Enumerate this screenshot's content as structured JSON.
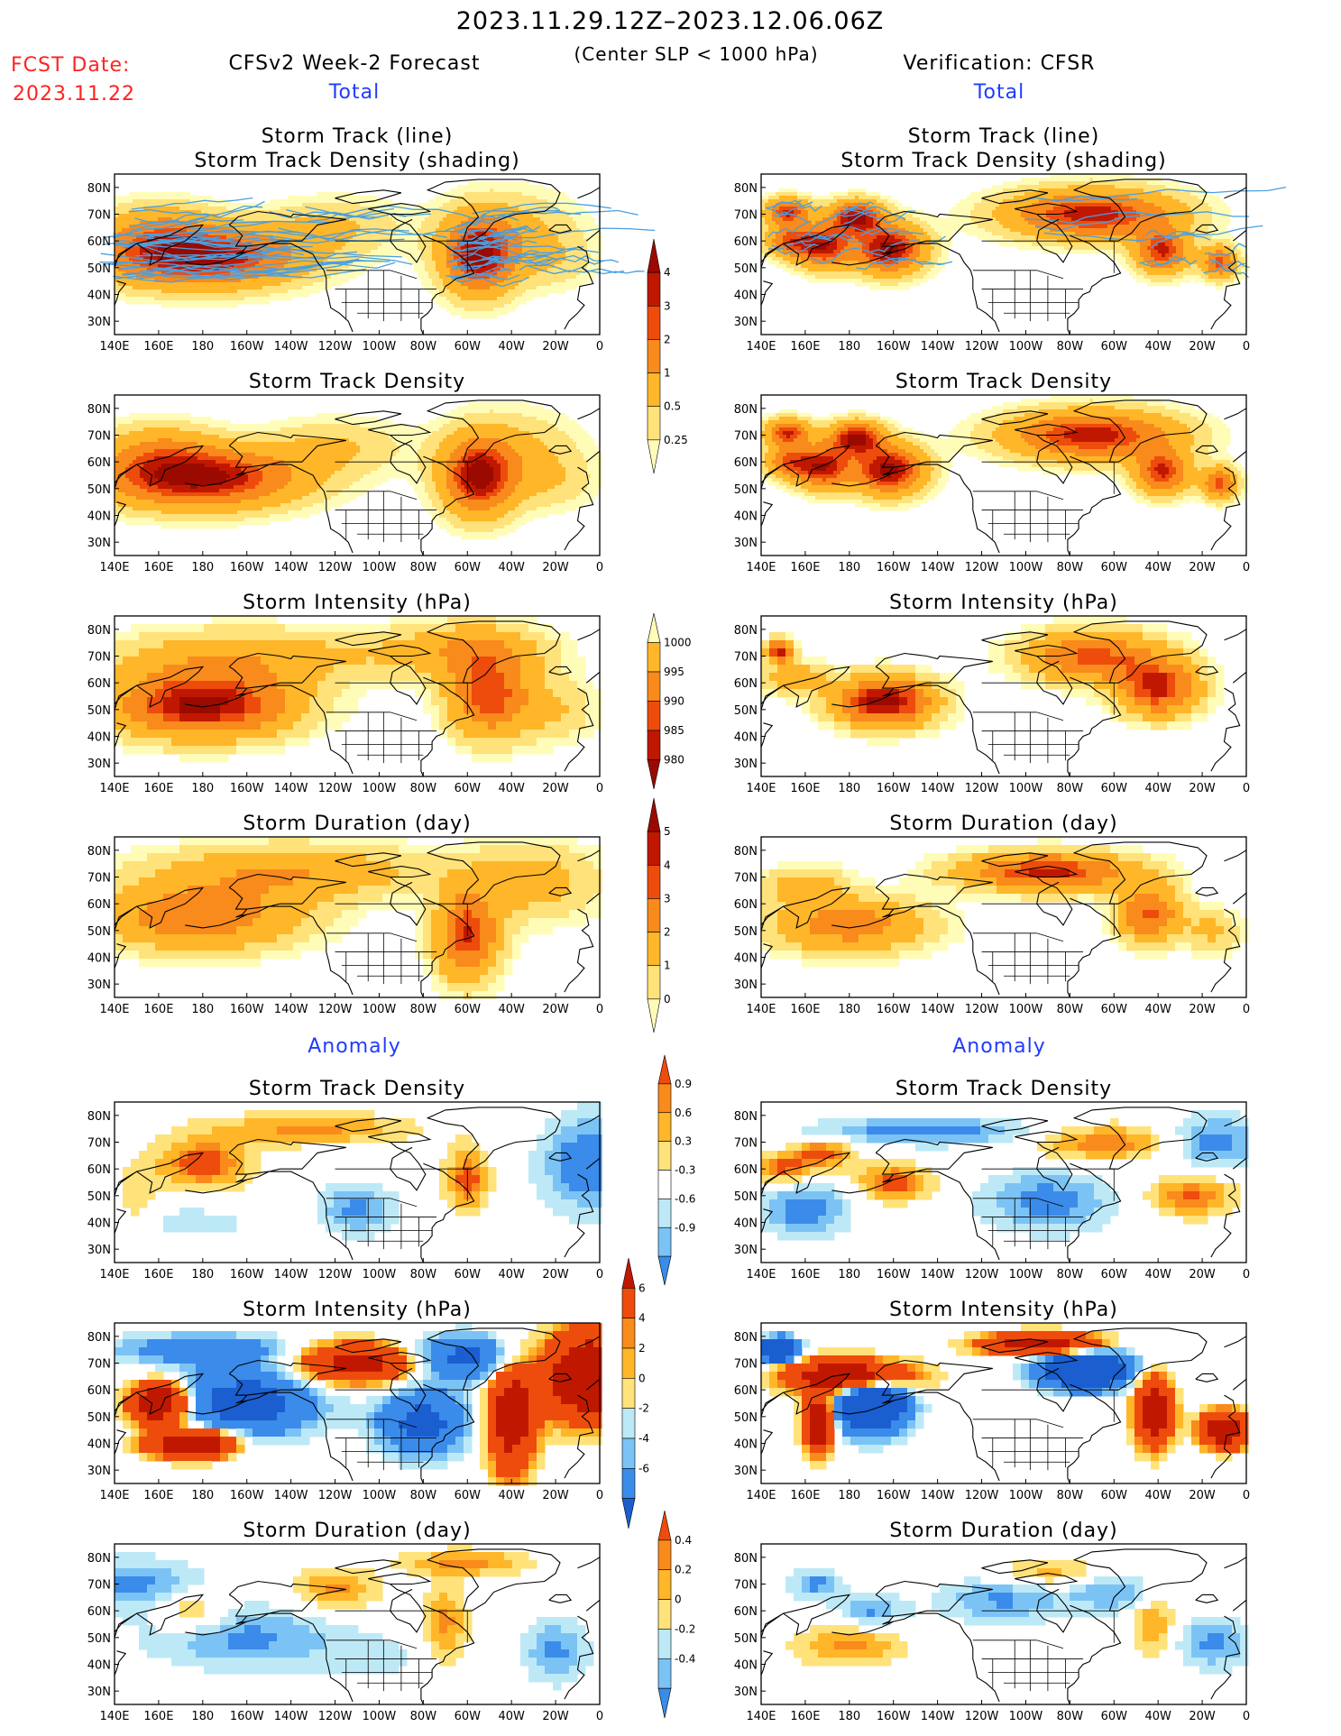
{
  "header": {
    "date_range": "2023.11.29.12Z–2023.12.06.06Z",
    "criterion": "(Center SLP < 1000 hPa)",
    "fcst_label": "FCST Date:",
    "fcst_date": "2023.11.22",
    "forecast_title": "CFSv2 Week-2 Forecast",
    "verification_title": "Verification: CFSR"
  },
  "sections": {
    "total": "Total",
    "anomaly": "Anomaly"
  },
  "axes": {
    "lon_ticks": [
      "140E",
      "160E",
      "180",
      "160W",
      "140W",
      "120W",
      "100W",
      "80W",
      "60W",
      "40W",
      "20W",
      "0"
    ],
    "lat_ticks": [
      "80N",
      "70N",
      "60N",
      "50N",
      "40N",
      "30N"
    ]
  },
  "colors": {
    "l1": "#fffcb8",
    "l2": "#ffe27a",
    "l3": "#ffb628",
    "l4": "#f98a1c",
    "l5": "#ee4c0c",
    "l6": "#c01800",
    "l7": "#9a0a00",
    "lb1": "#bde9f7",
    "lb2": "#7cc3f5",
    "lb3": "#3a8bea",
    "lb4": "#1a5ed0",
    "track": "#4a9fe0"
  },
  "chart_data": [
    {
      "type": "heatmap",
      "id": "fc-track-line",
      "title": [
        "Storm Track (line)",
        "Storm Track Density (shading)"
      ],
      "panel": "forecast",
      "field": "total",
      "lon_range": [
        140,
        360
      ],
      "lat_range": [
        25,
        85
      ]
    },
    {
      "type": "heatmap",
      "id": "vf-track-line",
      "title": [
        "Storm Track (line)",
        "Storm Track Density (shading)"
      ],
      "panel": "verification",
      "field": "total",
      "lon_range": [
        140,
        360
      ],
      "lat_range": [
        25,
        85
      ]
    },
    {
      "type": "heatmap",
      "id": "fc-density",
      "title": [
        "Storm Track Density"
      ],
      "panel": "forecast",
      "field": "total"
    },
    {
      "type": "heatmap",
      "id": "vf-density",
      "title": [
        "Storm Track Density"
      ],
      "panel": "verification",
      "field": "total"
    },
    {
      "type": "heatmap",
      "id": "fc-intensity",
      "title": [
        "Storm Intensity (hPa)"
      ],
      "panel": "forecast",
      "field": "total"
    },
    {
      "type": "heatmap",
      "id": "vf-intensity",
      "title": [
        "Storm Intensity (hPa)"
      ],
      "panel": "verification",
      "field": "total"
    },
    {
      "type": "heatmap",
      "id": "fc-duration",
      "title": [
        "Storm Duration (day)"
      ],
      "panel": "forecast",
      "field": "total"
    },
    {
      "type": "heatmap",
      "id": "vf-duration",
      "title": [
        "Storm Duration (day)"
      ],
      "panel": "verification",
      "field": "total"
    },
    {
      "type": "heatmap",
      "id": "fc-density-anom",
      "title": [
        "Storm Track Density"
      ],
      "panel": "forecast",
      "field": "anomaly"
    },
    {
      "type": "heatmap",
      "id": "vf-density-anom",
      "title": [
        "Storm Track Density"
      ],
      "panel": "verification",
      "field": "anomaly"
    },
    {
      "type": "heatmap",
      "id": "fc-intensity-anom",
      "title": [
        "Storm Intensity (hPa)"
      ],
      "panel": "forecast",
      "field": "anomaly"
    },
    {
      "type": "heatmap",
      "id": "vf-intensity-anom",
      "title": [
        "Storm Intensity (hPa)"
      ],
      "panel": "verification",
      "field": "anomaly"
    },
    {
      "type": "heatmap",
      "id": "fc-duration-anom",
      "title": [
        "Storm Duration (day)"
      ],
      "panel": "forecast",
      "field": "anomaly"
    },
    {
      "type": "heatmap",
      "id": "vf-duration-anom",
      "title": [
        "Storm Duration (day)"
      ],
      "panel": "verification",
      "field": "anomaly"
    }
  ],
  "colorbars": [
    {
      "id": "cb-density",
      "labels": [
        "4",
        "3",
        "2",
        "1",
        "0.5",
        "0.25"
      ],
      "colors": [
        "#9a0a00",
        "#c01800",
        "#ee4c0c",
        "#f98a1c",
        "#ffb628",
        "#ffe27a",
        "#fffcb8"
      ],
      "tails": "both-arrow"
    },
    {
      "id": "cb-intensity",
      "labels": [
        "1000",
        "995",
        "990",
        "985",
        "980"
      ],
      "colors": [
        "#fffcb8",
        "#ffb628",
        "#f98a1c",
        "#ee4c0c",
        "#c01800",
        "#9a0a00"
      ],
      "tails": "both-arrow"
    },
    {
      "id": "cb-duration",
      "labels": [
        "5",
        "4",
        "3",
        "2",
        "1",
        "0"
      ],
      "colors": [
        "#9a0a00",
        "#c01800",
        "#ee4c0c",
        "#f98a1c",
        "#ffb628",
        "#ffe27a",
        "#fffcb8"
      ],
      "tails": "both-arrow"
    },
    {
      "id": "cb-density-anom",
      "labels": [
        "0.9",
        "0.6",
        "0.3",
        "-0.3",
        "-0.6",
        "-0.9"
      ],
      "colors": [
        "#ee4c0c",
        "#f98a1c",
        "#ffb628",
        "#ffe27a",
        "#ffffff",
        "#bde9f7",
        "#7cc3f5",
        "#3a8bea"
      ],
      "tails": "both-arrow"
    },
    {
      "id": "cb-intensity-anom",
      "labels": [
        "6",
        "4",
        "2",
        "0",
        "-2",
        "-4",
        "-6"
      ],
      "colors": [
        "#c01800",
        "#ee4c0c",
        "#f98a1c",
        "#ffb628",
        "#ffe27a",
        "#bde9f7",
        "#7cc3f5",
        "#3a8bea",
        "#1a5ed0"
      ],
      "tails": "both-arrow"
    },
    {
      "id": "cb-duration-anom",
      "labels": [
        "0.4",
        "0.2",
        "0",
        "-0.2",
        "-0.4"
      ],
      "colors": [
        "#ee4c0c",
        "#f98a1c",
        "#ffb628",
        "#ffe27a",
        "#bde9f7",
        "#7cc3f5",
        "#3a8bea"
      ],
      "tails": "both-arrow"
    }
  ]
}
